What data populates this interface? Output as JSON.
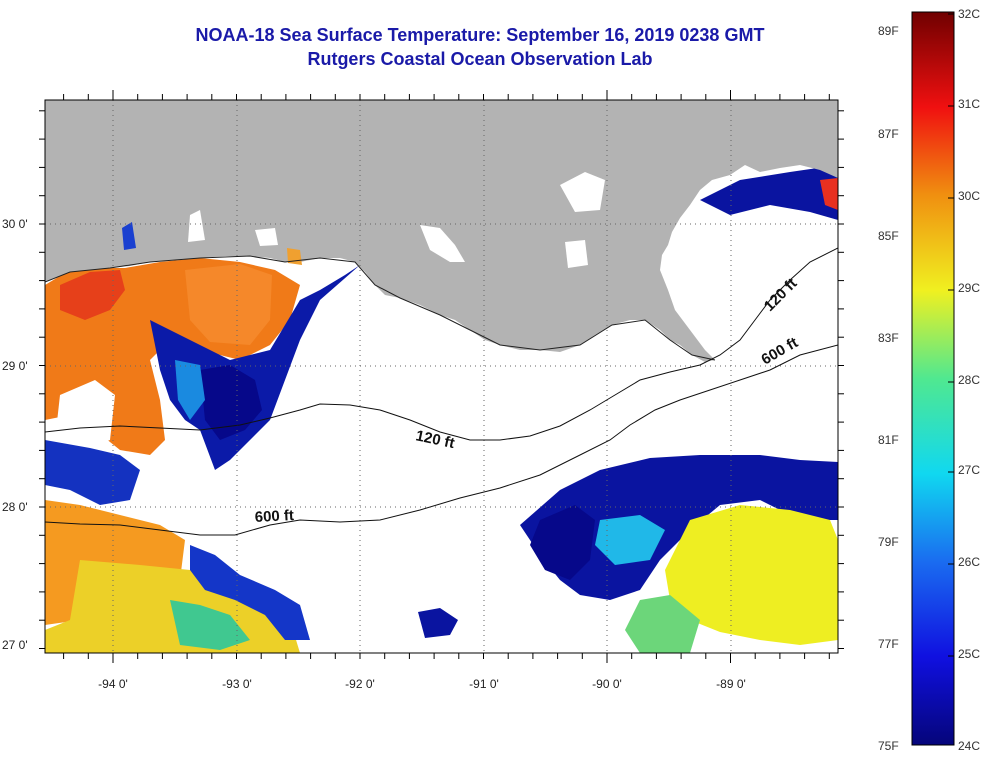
{
  "header": {
    "title": "NOAA-18 Sea Surface Temperature:  September 16, 2019 0238 GMT",
    "subtitle": "Rutgers Coastal Ocean Observation Lab"
  },
  "map": {
    "lon_labels": [
      "-94 0'",
      "-93 0'",
      "-92 0'",
      "-91 0'",
      "-90 0'",
      "-89 0'"
    ],
    "lat_labels": [
      "30 0'",
      "29 0'",
      "28 0'",
      "27 0'"
    ],
    "contours": [
      {
        "label": "120 ft",
        "depth": 120
      },
      {
        "label": "600 ft",
        "depth": 600
      },
      {
        "label": "120 ft",
        "depth": 120
      },
      {
        "label": "600 ft",
        "depth": 600
      }
    ],
    "colors": {
      "land": "#b3b3b3",
      "warm": "#f07a18",
      "mid": "#f0d820",
      "cool": "#1030b8",
      "deep": "#06088a"
    }
  },
  "colorbar": {
    "fahrenheit_labels": [
      "89F",
      "87F",
      "85F",
      "83F",
      "81F",
      "79F",
      "77F",
      "75F"
    ],
    "celsius_labels": [
      "32C",
      "31C",
      "30C",
      "29C",
      "28C",
      "27C",
      "26C",
      "25C",
      "24C"
    ],
    "range_c": [
      24,
      32
    ],
    "range_f": [
      75,
      89
    ]
  }
}
